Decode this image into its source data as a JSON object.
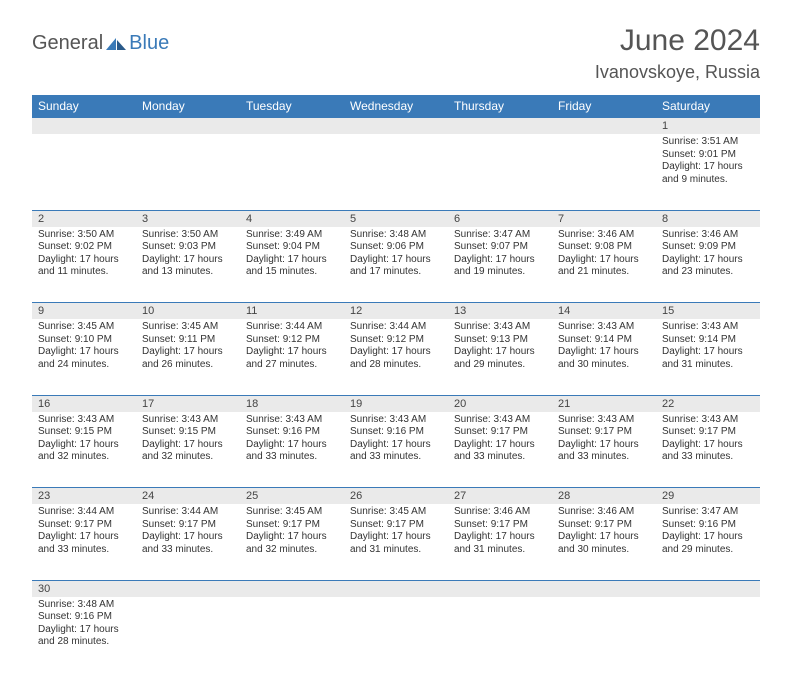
{
  "logo": {
    "part1": "General",
    "part2": "Blue"
  },
  "title": "June 2024",
  "location": "Ivanovskoye, Russia",
  "day_headers": [
    "Sunday",
    "Monday",
    "Tuesday",
    "Wednesday",
    "Thursday",
    "Friday",
    "Saturday"
  ],
  "colors": {
    "header_bg": "#3a7ab8",
    "header_text": "#ffffff",
    "daynum_bg": "#eaeaea",
    "divider": "#3a7ab8",
    "text": "#333333",
    "title_text": "#555555"
  },
  "fonts": {
    "title_size": 30,
    "location_size": 18,
    "header_size": 12,
    "daynum_size": 11,
    "body_size": 10
  },
  "weeks": [
    [
      null,
      null,
      null,
      null,
      null,
      null,
      {
        "n": "1",
        "sr": "Sunrise: 3:51 AM",
        "ss": "Sunset: 9:01 PM",
        "dl": "Daylight: 17 hours and 9 minutes."
      }
    ],
    [
      {
        "n": "2",
        "sr": "Sunrise: 3:50 AM",
        "ss": "Sunset: 9:02 PM",
        "dl": "Daylight: 17 hours and 11 minutes."
      },
      {
        "n": "3",
        "sr": "Sunrise: 3:50 AM",
        "ss": "Sunset: 9:03 PM",
        "dl": "Daylight: 17 hours and 13 minutes."
      },
      {
        "n": "4",
        "sr": "Sunrise: 3:49 AM",
        "ss": "Sunset: 9:04 PM",
        "dl": "Daylight: 17 hours and 15 minutes."
      },
      {
        "n": "5",
        "sr": "Sunrise: 3:48 AM",
        "ss": "Sunset: 9:06 PM",
        "dl": "Daylight: 17 hours and 17 minutes."
      },
      {
        "n": "6",
        "sr": "Sunrise: 3:47 AM",
        "ss": "Sunset: 9:07 PM",
        "dl": "Daylight: 17 hours and 19 minutes."
      },
      {
        "n": "7",
        "sr": "Sunrise: 3:46 AM",
        "ss": "Sunset: 9:08 PM",
        "dl": "Daylight: 17 hours and 21 minutes."
      },
      {
        "n": "8",
        "sr": "Sunrise: 3:46 AM",
        "ss": "Sunset: 9:09 PM",
        "dl": "Daylight: 17 hours and 23 minutes."
      }
    ],
    [
      {
        "n": "9",
        "sr": "Sunrise: 3:45 AM",
        "ss": "Sunset: 9:10 PM",
        "dl": "Daylight: 17 hours and 24 minutes."
      },
      {
        "n": "10",
        "sr": "Sunrise: 3:45 AM",
        "ss": "Sunset: 9:11 PM",
        "dl": "Daylight: 17 hours and 26 minutes."
      },
      {
        "n": "11",
        "sr": "Sunrise: 3:44 AM",
        "ss": "Sunset: 9:12 PM",
        "dl": "Daylight: 17 hours and 27 minutes."
      },
      {
        "n": "12",
        "sr": "Sunrise: 3:44 AM",
        "ss": "Sunset: 9:12 PM",
        "dl": "Daylight: 17 hours and 28 minutes."
      },
      {
        "n": "13",
        "sr": "Sunrise: 3:43 AM",
        "ss": "Sunset: 9:13 PM",
        "dl": "Daylight: 17 hours and 29 minutes."
      },
      {
        "n": "14",
        "sr": "Sunrise: 3:43 AM",
        "ss": "Sunset: 9:14 PM",
        "dl": "Daylight: 17 hours and 30 minutes."
      },
      {
        "n": "15",
        "sr": "Sunrise: 3:43 AM",
        "ss": "Sunset: 9:14 PM",
        "dl": "Daylight: 17 hours and 31 minutes."
      }
    ],
    [
      {
        "n": "16",
        "sr": "Sunrise: 3:43 AM",
        "ss": "Sunset: 9:15 PM",
        "dl": "Daylight: 17 hours and 32 minutes."
      },
      {
        "n": "17",
        "sr": "Sunrise: 3:43 AM",
        "ss": "Sunset: 9:15 PM",
        "dl": "Daylight: 17 hours and 32 minutes."
      },
      {
        "n": "18",
        "sr": "Sunrise: 3:43 AM",
        "ss": "Sunset: 9:16 PM",
        "dl": "Daylight: 17 hours and 33 minutes."
      },
      {
        "n": "19",
        "sr": "Sunrise: 3:43 AM",
        "ss": "Sunset: 9:16 PM",
        "dl": "Daylight: 17 hours and 33 minutes."
      },
      {
        "n": "20",
        "sr": "Sunrise: 3:43 AM",
        "ss": "Sunset: 9:17 PM",
        "dl": "Daylight: 17 hours and 33 minutes."
      },
      {
        "n": "21",
        "sr": "Sunrise: 3:43 AM",
        "ss": "Sunset: 9:17 PM",
        "dl": "Daylight: 17 hours and 33 minutes."
      },
      {
        "n": "22",
        "sr": "Sunrise: 3:43 AM",
        "ss": "Sunset: 9:17 PM",
        "dl": "Daylight: 17 hours and 33 minutes."
      }
    ],
    [
      {
        "n": "23",
        "sr": "Sunrise: 3:44 AM",
        "ss": "Sunset: 9:17 PM",
        "dl": "Daylight: 17 hours and 33 minutes."
      },
      {
        "n": "24",
        "sr": "Sunrise: 3:44 AM",
        "ss": "Sunset: 9:17 PM",
        "dl": "Daylight: 17 hours and 33 minutes."
      },
      {
        "n": "25",
        "sr": "Sunrise: 3:45 AM",
        "ss": "Sunset: 9:17 PM",
        "dl": "Daylight: 17 hours and 32 minutes."
      },
      {
        "n": "26",
        "sr": "Sunrise: 3:45 AM",
        "ss": "Sunset: 9:17 PM",
        "dl": "Daylight: 17 hours and 31 minutes."
      },
      {
        "n": "27",
        "sr": "Sunrise: 3:46 AM",
        "ss": "Sunset: 9:17 PM",
        "dl": "Daylight: 17 hours and 31 minutes."
      },
      {
        "n": "28",
        "sr": "Sunrise: 3:46 AM",
        "ss": "Sunset: 9:17 PM",
        "dl": "Daylight: 17 hours and 30 minutes."
      },
      {
        "n": "29",
        "sr": "Sunrise: 3:47 AM",
        "ss": "Sunset: 9:16 PM",
        "dl": "Daylight: 17 hours and 29 minutes."
      }
    ],
    [
      {
        "n": "30",
        "sr": "Sunrise: 3:48 AM",
        "ss": "Sunset: 9:16 PM",
        "dl": "Daylight: 17 hours and 28 minutes."
      },
      null,
      null,
      null,
      null,
      null,
      null
    ]
  ]
}
